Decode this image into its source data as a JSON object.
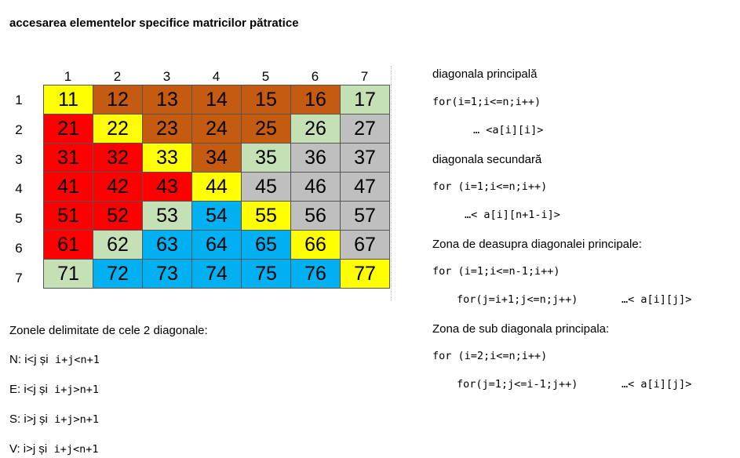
{
  "title": "accesarea elementelor specifice matricilor pătratice",
  "col_headers": [
    "1",
    "2",
    "3",
    "4",
    "5",
    "6",
    "7"
  ],
  "row_headers": [
    "1",
    "2",
    "3",
    "4",
    "5",
    "6",
    "7"
  ],
  "colors": {
    "yellow": "#ffff00",
    "orange": "#c55a11",
    "green": "#c5e0b4",
    "red": "#ff0000",
    "gray": "#bfbfbf",
    "blue": "#00b0f0"
  },
  "matrix": [
    [
      {
        "v": "11",
        "c": "yellow"
      },
      {
        "v": "12",
        "c": "orange"
      },
      {
        "v": "13",
        "c": "orange"
      },
      {
        "v": "14",
        "c": "orange"
      },
      {
        "v": "15",
        "c": "orange"
      },
      {
        "v": "16",
        "c": "orange"
      },
      {
        "v": "17",
        "c": "green"
      }
    ],
    [
      {
        "v": "21",
        "c": "red"
      },
      {
        "v": "22",
        "c": "yellow"
      },
      {
        "v": "23",
        "c": "orange"
      },
      {
        "v": "24",
        "c": "orange"
      },
      {
        "v": "25",
        "c": "orange"
      },
      {
        "v": "26",
        "c": "green"
      },
      {
        "v": "27",
        "c": "gray"
      }
    ],
    [
      {
        "v": "31",
        "c": "red"
      },
      {
        "v": "32",
        "c": "red"
      },
      {
        "v": "33",
        "c": "yellow"
      },
      {
        "v": "34",
        "c": "orange"
      },
      {
        "v": "35",
        "c": "green"
      },
      {
        "v": "36",
        "c": "gray"
      },
      {
        "v": "37",
        "c": "gray"
      }
    ],
    [
      {
        "v": "41",
        "c": "red"
      },
      {
        "v": "42",
        "c": "red"
      },
      {
        "v": "43",
        "c": "red"
      },
      {
        "v": "44",
        "c": "yellow"
      },
      {
        "v": "45",
        "c": "gray"
      },
      {
        "v": "46",
        "c": "gray"
      },
      {
        "v": "47",
        "c": "gray"
      }
    ],
    [
      {
        "v": "51",
        "c": "red"
      },
      {
        "v": "52",
        "c": "red"
      },
      {
        "v": "53",
        "c": "green"
      },
      {
        "v": "54",
        "c": "blue"
      },
      {
        "v": "55",
        "c": "yellow"
      },
      {
        "v": "56",
        "c": "gray"
      },
      {
        "v": "57",
        "c": "gray"
      }
    ],
    [
      {
        "v": "61",
        "c": "red"
      },
      {
        "v": "62",
        "c": "green"
      },
      {
        "v": "63",
        "c": "blue"
      },
      {
        "v": "64",
        "c": "blue"
      },
      {
        "v": "65",
        "c": "blue"
      },
      {
        "v": "66",
        "c": "yellow"
      },
      {
        "v": "67",
        "c": "gray"
      }
    ],
    [
      {
        "v": "71",
        "c": "green"
      },
      {
        "v": "72",
        "c": "blue"
      },
      {
        "v": "73",
        "c": "blue"
      },
      {
        "v": "74",
        "c": "blue"
      },
      {
        "v": "75",
        "c": "blue"
      },
      {
        "v": "76",
        "c": "blue"
      },
      {
        "v": "77",
        "c": "yellow"
      }
    ]
  ],
  "zones": {
    "heading": "Zonele delimitate de cele 2 diagonale:",
    "items": [
      {
        "letter": "N",
        "cond": "i<j și",
        "expr": "i+j<n+1"
      },
      {
        "letter": "E",
        "cond": "i<j și",
        "expr": "i+j>n+1"
      },
      {
        "letter": "S",
        "cond": "i>j și",
        "expr": "i+j>n+1"
      },
      {
        "letter": "V",
        "cond": "i>j și",
        "expr": "i+j<n+1"
      }
    ]
  },
  "right": {
    "main_diag_title": "diagonala principală",
    "main_diag_for": "for(i=1;i<=n;i++)",
    "main_diag_access": "… <a[i][i]>",
    "sec_diag_title": "diagonala secundară",
    "sec_diag_for": "for (i=1;i<=n;i++)",
    "sec_diag_access": "…< a[i][n+1-i]>",
    "above_title": "Zona de deasupra diagonalei principale:",
    "above_for1": "for (i=1;i<=n-1;i++)",
    "above_for2": "for(j=i+1;j<=n;j++)",
    "above_access": "…< a[i][j]>",
    "below_title": "Zona de sub diagonala principala:",
    "below_for1": "for (i=2;i<=n;i++)",
    "below_for2": "for(j=1;j<=i-1;j++)",
    "below_access": "…< a[i][j]>"
  }
}
